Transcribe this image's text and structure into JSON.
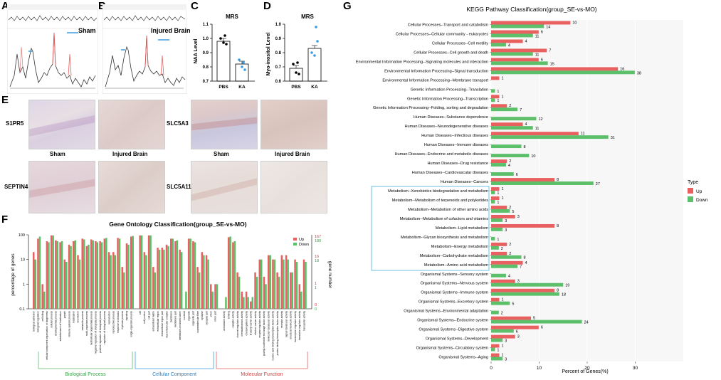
{
  "panels": {
    "A": "A",
    "B": "B",
    "C": "C",
    "D": "D",
    "E": "E",
    "F": "F",
    "G": "G"
  },
  "panelA": {
    "label": "Sham"
  },
  "panelB": {
    "label": "Injured Brain"
  },
  "panelC": {
    "chart_data": {
      "type": "bar",
      "title": "MRS",
      "ylabel": "NAA Level",
      "categories": [
        "PBS",
        "KA"
      ],
      "values": [
        0.98,
        0.82
      ],
      "ylim": [
        0.7,
        1.1
      ],
      "yticks": [
        "0.7",
        "0.8",
        "0.9",
        "1.0",
        "1.1"
      ],
      "points": [
        [
          1.0,
          0.97,
          0.96,
          1.02
        ],
        [
          0.85,
          0.8,
          0.78,
          0.83
        ]
      ],
      "colors": [
        "#000000",
        "#3b9de0"
      ]
    }
  },
  "panelD": {
    "chart_data": {
      "type": "bar",
      "title": "MRS",
      "ylabel": "Myo-inositol Level",
      "categories": [
        "PBS",
        "KA"
      ],
      "values": [
        0.69,
        0.83
      ],
      "ylim": [
        0.6,
        1.0
      ],
      "yticks": [
        "0.6",
        "0.7",
        "0.8",
        "0.9",
        "1.0"
      ],
      "points": [
        [
          0.72,
          0.66,
          0.65,
          0.73
        ],
        [
          0.8,
          0.78,
          0.88,
          0.98
        ]
      ],
      "colors": [
        "#000000",
        "#3b9de0"
      ]
    }
  },
  "panelE": {
    "rows": [
      "S1PR5",
      "SEPTIN4",
      "SLC5A3",
      "SLC5A11"
    ],
    "captions": [
      "Sham",
      "Injured Brain",
      "Sham",
      "Injured Brain"
    ]
  },
  "panelF": {
    "chart_data": {
      "type": "bar",
      "title": "Gene Ontology Classification(group_SE-vs-MO)",
      "ylabel": "percentage of genes",
      "y2label": "gene number",
      "yticks": [
        "0.1",
        "1",
        "10",
        "100"
      ],
      "y2ticks_red": [
        "167",
        "16",
        "1",
        "0"
      ],
      "y2ticks_green": [
        "180",
        "18",
        "1",
        "0"
      ],
      "legend": [
        "Up",
        "Down"
      ],
      "groups": [
        "Biological Process",
        "Cellular Component",
        "Molecular Function"
      ],
      "categories": [
        "biological adhesion",
        "biological regulation",
        "cell killing",
        "cellular component organization or biogenesis",
        "cellular process",
        "developmental process",
        "establishment of localization",
        "growth",
        "immune system process",
        "localization",
        "locomotion",
        "metabolic process",
        "multi-organism process",
        "multicellular organismal process",
        "negative regulation of biological process",
        "positive regulation of biological process",
        "regulation of biological process",
        "reproduction",
        "reproductive process",
        "response to stimulus",
        "rhythmic process",
        "signaling",
        "single-organism process",
        "cell",
        "cell junction",
        "cell part",
        "extracellular matrix",
        "extracellular region",
        "extracellular region part",
        "macromolecular complex",
        "membrane",
        "membrane part",
        "membrane-enclosed lumen",
        "nucleoid",
        "organelle",
        "organelle part",
        "supramolecular fiber",
        "synapse",
        "synapse part",
        "virion",
        "virion part",
        "antioxidant activity",
        "binding",
        "catalytic activity",
        "channel regulator activity",
        "chemoattractant activity",
        "chemorepellent activity",
        "D-alanyl carrier activity",
        "electron carrier activity",
        "enzyme regulator activity",
        "guanyl-nucleotide exchange factor activity",
        "molecular transducer activity",
        "nucleic acid binding transcription factor activity",
        "protein binding transcription factor activity",
        "receptor activity",
        "signal transducer activity",
        "structural molecule activity",
        "transcription regulator activity",
        "translation regulator activity",
        "transporter activity"
      ],
      "up": [
        20,
        70,
        1,
        55,
        95,
        60,
        50,
        10,
        40,
        55,
        15,
        70,
        35,
        65,
        55,
        55,
        70,
        20,
        20,
        75,
        5,
        45,
        85,
        95,
        20,
        95,
        5,
        30,
        30,
        40,
        70,
        55,
        25,
        0,
        70,
        55,
        5,
        20,
        15,
        1,
        1,
        0,
        80,
        50,
        3,
        0.5,
        0.5,
        0.2,
        3,
        10,
        2,
        15,
        10,
        3,
        15,
        15,
        3,
        10,
        1,
        10
      ],
      "down": [
        10,
        85,
        0.5,
        50,
        95,
        55,
        55,
        8,
        35,
        60,
        10,
        65,
        40,
        60,
        50,
        50,
        75,
        15,
        15,
        70,
        3,
        40,
        90,
        95,
        15,
        95,
        3,
        25,
        25,
        35,
        70,
        60,
        20,
        0.5,
        70,
        50,
        3,
        15,
        10,
        0.5,
        1,
        0.3,
        85,
        55,
        2,
        0.3,
        0.3,
        0.3,
        2,
        10,
        1,
        15,
        10,
        2,
        10,
        10,
        3,
        8,
        0.5,
        8
      ]
    }
  },
  "panelG": {
    "chart_data": {
      "type": "bar",
      "orientation": "horizontal",
      "title": "KEGG Pathway Classification(group_SE-vs-MO)",
      "xlabel": "Percent of Genes(%)",
      "xlim": [
        0,
        40
      ],
      "xticks": [
        0,
        10,
        20,
        30
      ],
      "legend_title": "Type",
      "legend": [
        "Up",
        "Down"
      ],
      "categories": [
        "Cellular Processes--Transport and catabolism",
        "Cellular Processes--Cellular community - eukaryotes",
        "Cellular Processes--Cell motility",
        "Cellular Processes--Cell growth and death",
        "Environmental Information Processing--Signaling molecules and interaction",
        "Environmental Information Processing--Signal transduction",
        "Environmental Information Processing--Membrane transport",
        "Genetic Information Processing--Translation",
        "Genetic Information Processing--Transcription",
        "Genetic Information Processing--Folding, sorting and degradation",
        "Human Diseases--Substance dependence",
        "Human Diseases--Neurodegenerative diseases",
        "Human Diseases--Infectious diseases",
        "Human Diseases--Immune diseases",
        "Human Diseases--Endocrine and metabolic diseases",
        "Human Diseases--Drug resistance",
        "Human Diseases--Cardiovascular diseases",
        "Human Diseases--Cancers",
        "Metabolism--Xenobiotics biodegradation and metabolism",
        "Metabolism--Metabolism of terpenoids and polyketides",
        "Metabolism--Metabolism of other amino acids",
        "Metabolism--Metabolism of cofactors and vitamins",
        "Metabolism--Lipid metabolism",
        "Metabolism--Glycan biosynthesis and metabolism",
        "Metabolism--Energy metabolism",
        "Metabolism--Carbohydrate metabolism",
        "Metabolism--Amino acid metabolism",
        "Organismal Systems--Sensory system",
        "Organismal Systems--Nervous system",
        "Organismal Systems--Immune system",
        "Organismal Systems--Excretory system",
        "Organismal Systems--Environmental adaptation",
        "Organismal Systems--Endocrine system",
        "Organismal Systems--Digestive system",
        "Organismal Systems--Development",
        "Organismal Systems--Circulatory system",
        "Organismal Systems--Aging"
      ],
      "up": [
        10,
        6,
        4,
        7,
        6,
        16,
        1,
        null,
        1,
        2,
        null,
        4,
        11,
        null,
        null,
        2,
        null,
        8,
        1,
        1,
        2,
        3,
        8,
        null,
        2,
        2,
        4,
        null,
        3,
        8,
        1,
        null,
        5,
        6,
        3,
        1,
        1
      ],
      "down": [
        14,
        11,
        4,
        11,
        15,
        38,
        null,
        1,
        1,
        7,
        12,
        11,
        31,
        8,
        10,
        4,
        6,
        27,
        1,
        1,
        5,
        3,
        3,
        1,
        2,
        8,
        7,
        4,
        19,
        18,
        5,
        2,
        24,
        6,
        3,
        1,
        3
      ],
      "up_pct": [
        16.5,
        9.9,
        6.6,
        11.6,
        9.9,
        26.4,
        1.7,
        null,
        1.7,
        3.3,
        null,
        6.6,
        18.2,
        null,
        null,
        3.3,
        null,
        13.2,
        1.7,
        1.7,
        3.3,
        5.0,
        13.2,
        null,
        3.3,
        3.3,
        6.6,
        null,
        5.0,
        13.2,
        1.7,
        null,
        8.3,
        9.9,
        5.0,
        1.7,
        1.7
      ],
      "down_pct": [
        11.0,
        8.7,
        3.1,
        8.7,
        11.8,
        29.9,
        null,
        0.8,
        0.8,
        5.5,
        9.4,
        8.7,
        24.4,
        6.3,
        7.9,
        3.1,
        4.7,
        21.3,
        0.8,
        0.8,
        3.9,
        2.4,
        2.4,
        0.8,
        1.6,
        6.3,
        5.5,
        3.1,
        15.0,
        14.2,
        3.9,
        1.6,
        18.9,
        4.7,
        2.4,
        0.8,
        2.4
      ],
      "colors": {
        "up": "#e8605f",
        "down": "#5cbf6a"
      }
    }
  }
}
